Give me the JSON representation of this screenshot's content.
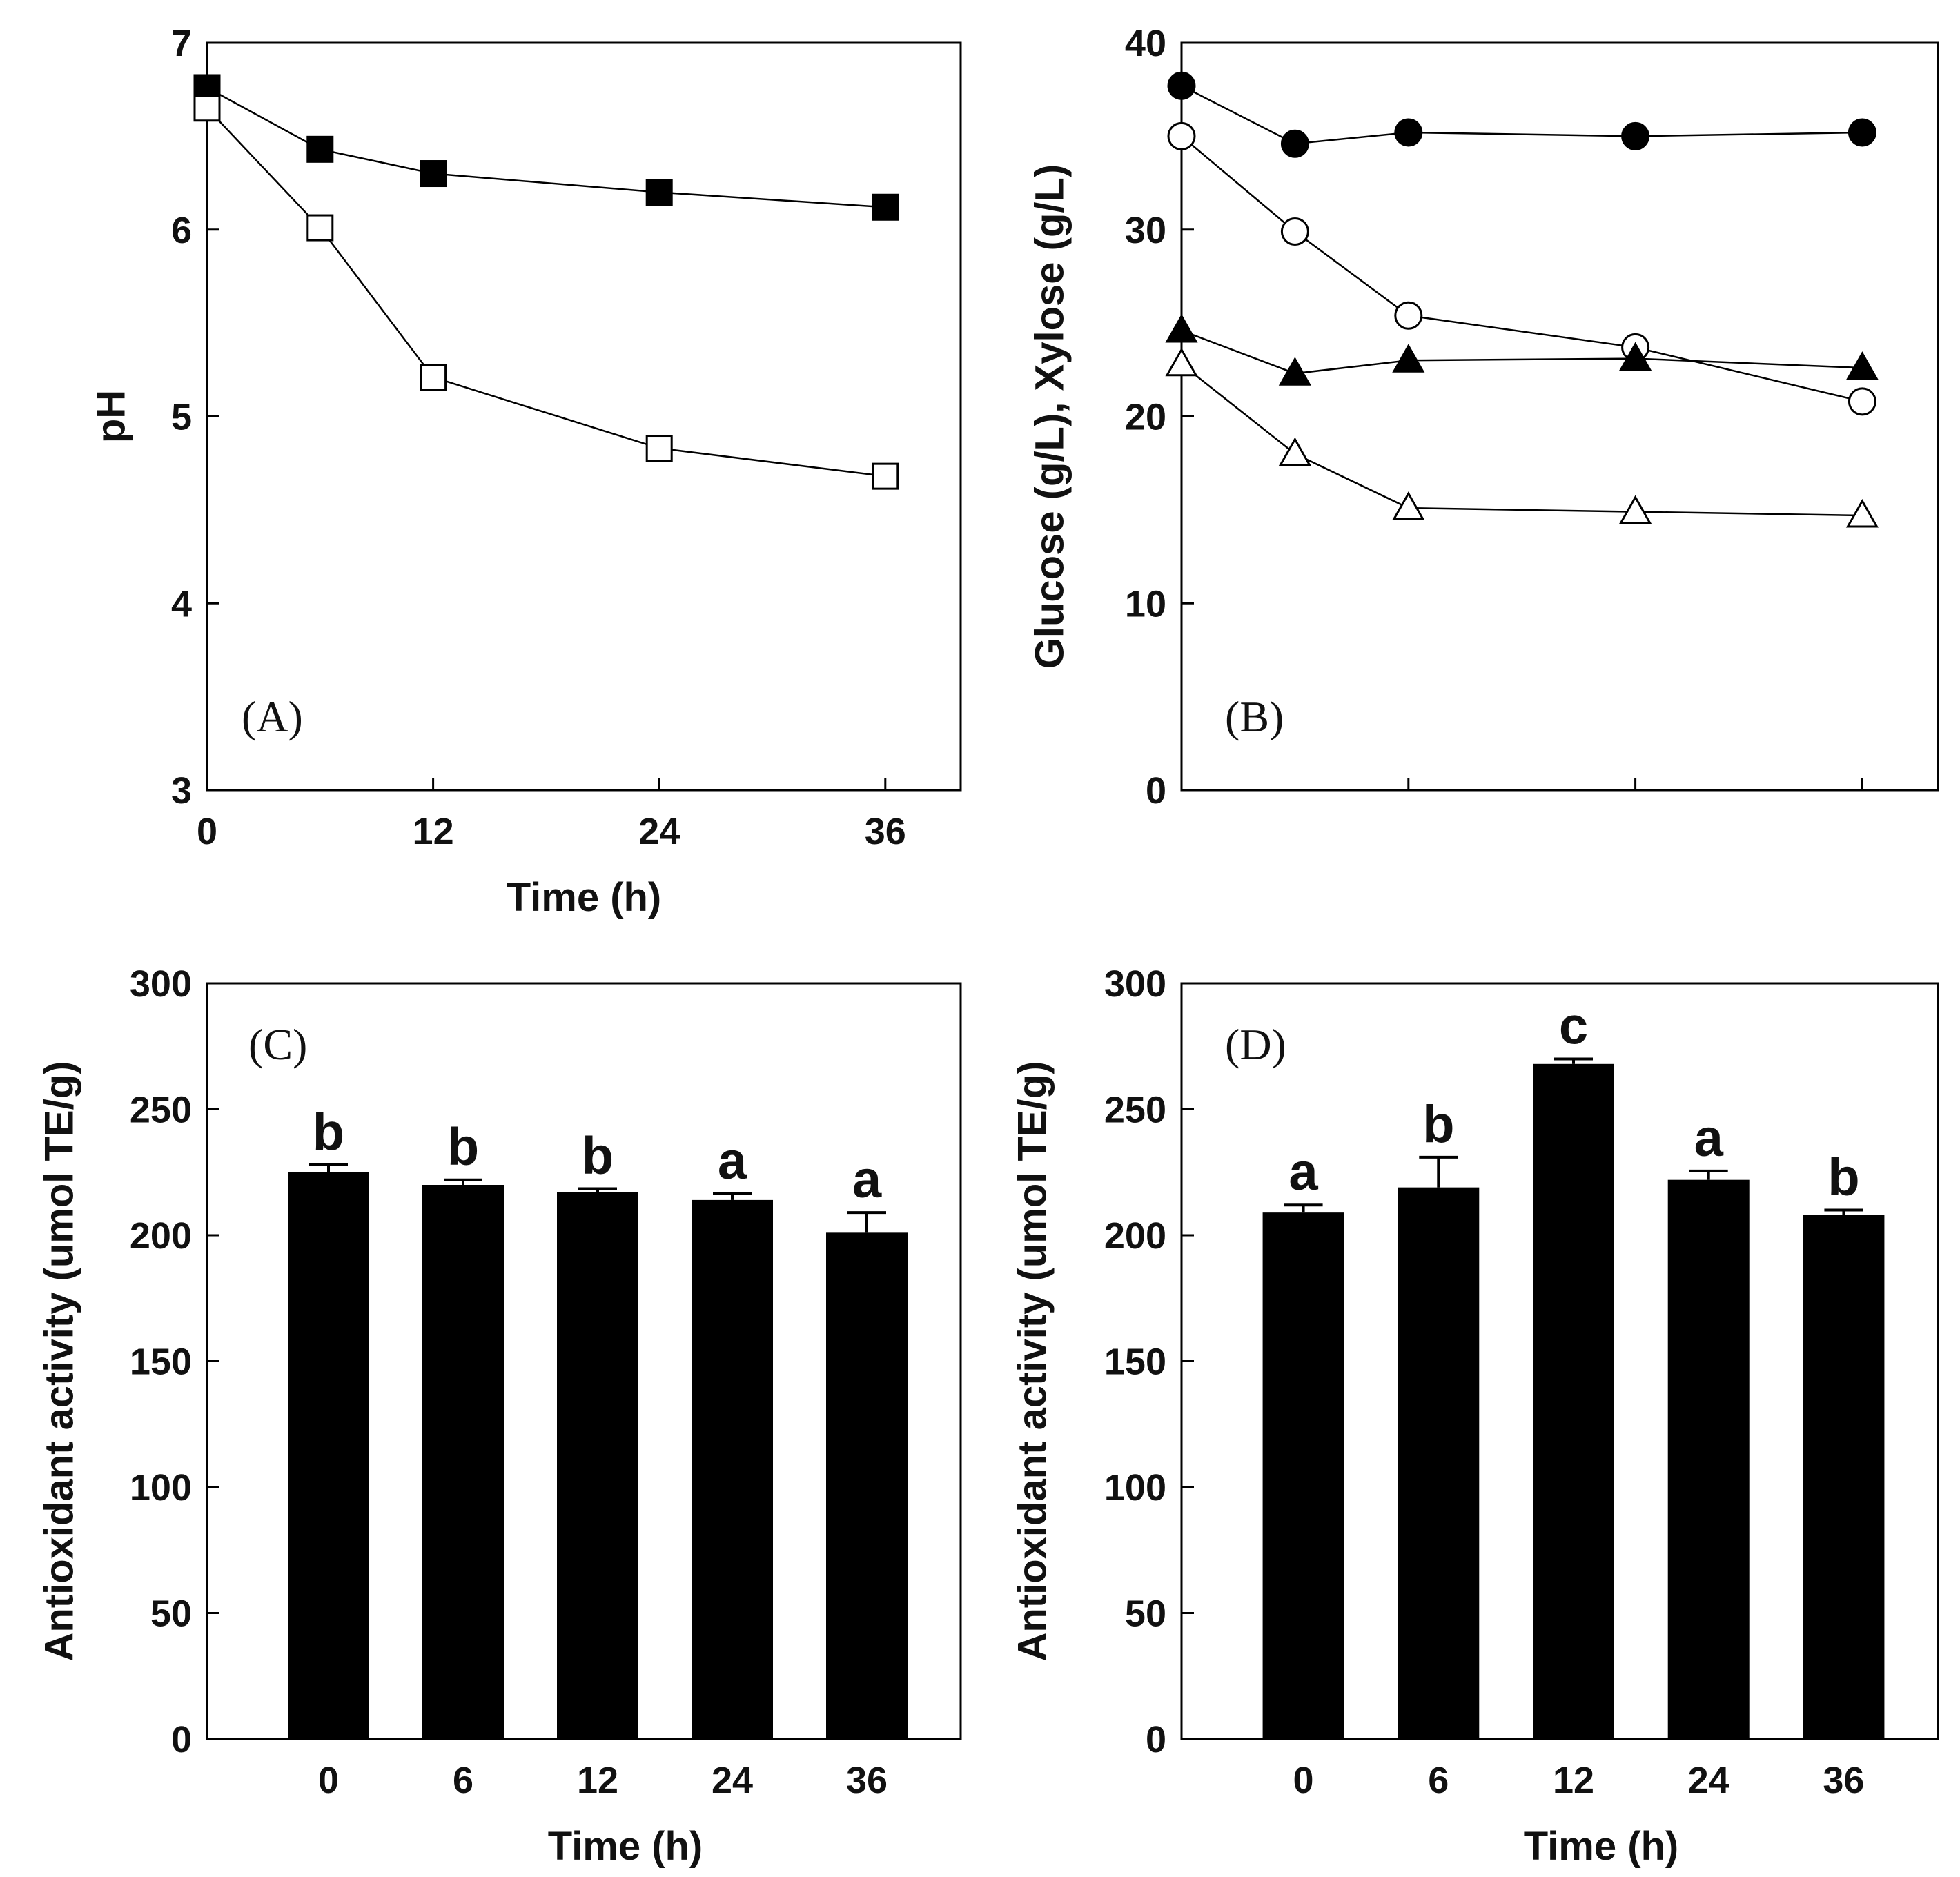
{
  "chart_data": [
    {
      "panel": "A",
      "type": "line",
      "label": "(A)",
      "xlabel": "Time (h)",
      "ylabel": "pH",
      "xlim": [
        0,
        40
      ],
      "ylim": [
        3,
        7
      ],
      "xticks": [
        0,
        12,
        24,
        36
      ],
      "yticks": [
        3,
        4,
        5,
        6,
        7
      ],
      "x": [
        0,
        6,
        12,
        24,
        36
      ],
      "series": [
        {
          "name": "filled-square",
          "marker": "square",
          "fill": "#000000",
          "values": [
            6.76,
            6.43,
            6.3,
            6.2,
            6.12
          ]
        },
        {
          "name": "open-square",
          "marker": "square",
          "fill": "#ffffff",
          "values": [
            6.65,
            6.01,
            5.21,
            4.83,
            4.68
          ]
        }
      ]
    },
    {
      "panel": "B",
      "type": "line",
      "label": "(B)",
      "xlabel": "",
      "ylabel": "Glucose (g/L), Xylose (g/L)",
      "xlim": [
        0,
        40
      ],
      "ylim": [
        0,
        40
      ],
      "xticks": [
        0,
        12,
        24,
        36
      ],
      "xtick_labels_shown": false,
      "yticks": [
        0,
        10,
        20,
        30,
        40
      ],
      "x": [
        0,
        6,
        12,
        24,
        36
      ],
      "series": [
        {
          "name": "filled-circle",
          "marker": "circle",
          "fill": "#000000",
          "values": [
            37.7,
            34.6,
            35.2,
            35.0,
            35.2
          ]
        },
        {
          "name": "open-circle",
          "marker": "circle",
          "fill": "#ffffff",
          "values": [
            35.0,
            29.9,
            25.4,
            23.7,
            20.8
          ]
        },
        {
          "name": "filled-triangle",
          "marker": "triangle",
          "fill": "#000000",
          "values": [
            24.6,
            22.3,
            23.0,
            23.1,
            22.6
          ]
        },
        {
          "name": "open-triangle",
          "marker": "triangle",
          "fill": "#ffffff",
          "values": [
            22.8,
            18.0,
            15.1,
            14.9,
            14.7
          ]
        }
      ]
    },
    {
      "panel": "C",
      "type": "bar",
      "label": "(C)",
      "xlabel": "Time (h)",
      "ylabel": "Antioxidant activity (umol TE/g)",
      "ylim": [
        0,
        300
      ],
      "yticks": [
        0,
        50,
        100,
        150,
        200,
        250,
        300
      ],
      "categories": [
        "0",
        "6",
        "12",
        "24",
        "36"
      ],
      "values": [
        225,
        220,
        217,
        214,
        201
      ],
      "errors": [
        3,
        2,
        1.5,
        2.5,
        8
      ],
      "significance": [
        "b",
        "b",
        "b",
        "a",
        "a"
      ]
    },
    {
      "panel": "D",
      "type": "bar",
      "label": "(D)",
      "xlabel": "Time (h)",
      "ylabel": "Antioxidant activity (umol TE/g)",
      "ylim": [
        0,
        300
      ],
      "yticks": [
        0,
        50,
        100,
        150,
        200,
        250,
        300
      ],
      "categories": [
        "0",
        "6",
        "12",
        "24",
        "36"
      ],
      "values": [
        209,
        219,
        268,
        222,
        208
      ],
      "errors": [
        3,
        12,
        2,
        3.5,
        2
      ],
      "significance": [
        "a",
        "b",
        "c",
        "a",
        "b"
      ]
    }
  ]
}
